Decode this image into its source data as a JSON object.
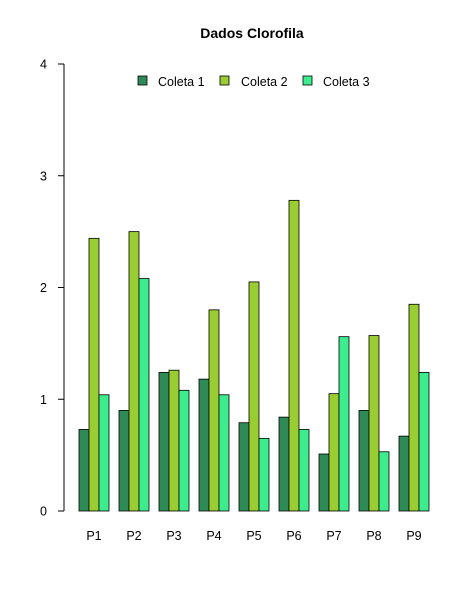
{
  "chart_data": {
    "type": "bar",
    "title": "Dados Clorofila",
    "xlabel": "",
    "ylabel": "",
    "ylim": [
      0,
      4
    ],
    "yticks": [
      0,
      1,
      2,
      3,
      4
    ],
    "grid": false,
    "legend_position": "top",
    "categories": [
      "P1",
      "P2",
      "P3",
      "P4",
      "P5",
      "P6",
      "P7",
      "P8",
      "P9"
    ],
    "series": [
      {
        "name": "Coleta 1",
        "color": "#2e8b57",
        "values": [
          0.73,
          0.9,
          1.24,
          1.18,
          0.79,
          0.84,
          0.51,
          0.9,
          0.67
        ]
      },
      {
        "name": "Coleta 2",
        "color": "#9acd32",
        "values": [
          2.44,
          2.5,
          1.26,
          1.8,
          2.05,
          2.78,
          1.05,
          1.57,
          1.85
        ]
      },
      {
        "name": "Coleta 3",
        "color": "#3dec8e",
        "values": [
          1.04,
          2.08,
          1.08,
          1.04,
          0.65,
          0.73,
          1.56,
          0.53,
          1.24
        ]
      }
    ]
  }
}
